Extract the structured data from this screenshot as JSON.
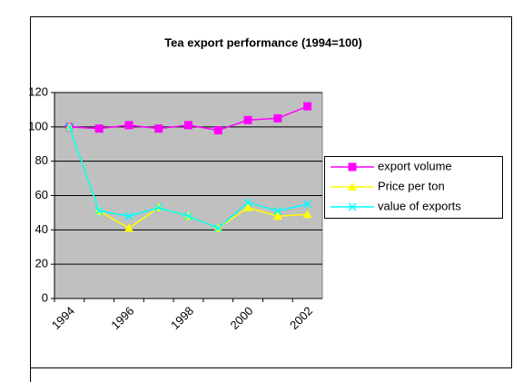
{
  "chart_data": {
    "type": "line",
    "title": "Tea export performance (1994=100)",
    "categories": [
      "1994",
      null,
      "1996",
      null,
      "1998",
      null,
      "2000",
      null,
      "2002"
    ],
    "series": [
      {
        "name": "export volume",
        "color": "#ff00ff",
        "marker": "square",
        "values": [
          100,
          99,
          101,
          99,
          101,
          98,
          104,
          105,
          112
        ]
      },
      {
        "name": "Price per ton",
        "color": "#ffff00",
        "marker": "triangle",
        "values": [
          100,
          51,
          41,
          53,
          48,
          41,
          53,
          48,
          49
        ]
      },
      {
        "name": "value of exports",
        "color": "#00ffff",
        "marker": "x",
        "values": [
          100,
          51,
          48,
          53,
          48,
          41,
          56,
          51,
          55
        ]
      }
    ],
    "ylim": [
      0,
      120
    ],
    "yticks": [
      0,
      20,
      40,
      60,
      80,
      100,
      120
    ],
    "grid": true,
    "legend": "right"
  }
}
